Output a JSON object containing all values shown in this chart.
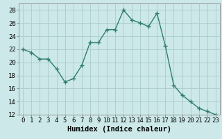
{
  "x": [
    0,
    1,
    2,
    3,
    4,
    5,
    6,
    7,
    8,
    9,
    10,
    11,
    12,
    13,
    14,
    15,
    16,
    17,
    18,
    19,
    20,
    21,
    22,
    23
  ],
  "y": [
    22,
    21.5,
    20.5,
    20.5,
    19,
    17,
    17.5,
    19.5,
    23,
    23,
    25,
    25,
    28,
    26.5,
    26,
    25.5,
    27.5,
    22.5,
    16.5,
    15,
    14,
    13,
    12.5,
    12
  ],
  "line_color": "#2e7d6e",
  "marker_color": "#2e7d6e",
  "bg_color": "#cce8e8",
  "grid_color": "#aacccc",
  "xlabel": "Humidex (Indice chaleur)",
  "xlim": [
    -0.5,
    23.5
  ],
  "ylim": [
    12,
    29
  ],
  "yticks": [
    12,
    14,
    16,
    18,
    20,
    22,
    24,
    26,
    28
  ],
  "xticks": [
    0,
    1,
    2,
    3,
    4,
    5,
    6,
    7,
    8,
    9,
    10,
    11,
    12,
    13,
    14,
    15,
    16,
    17,
    18,
    19,
    20,
    21,
    22,
    23
  ],
  "xlabel_fontsize": 7.5,
  "tick_fontsize": 6.5,
  "linewidth": 1.0,
  "markersize": 4,
  "marker": "+"
}
